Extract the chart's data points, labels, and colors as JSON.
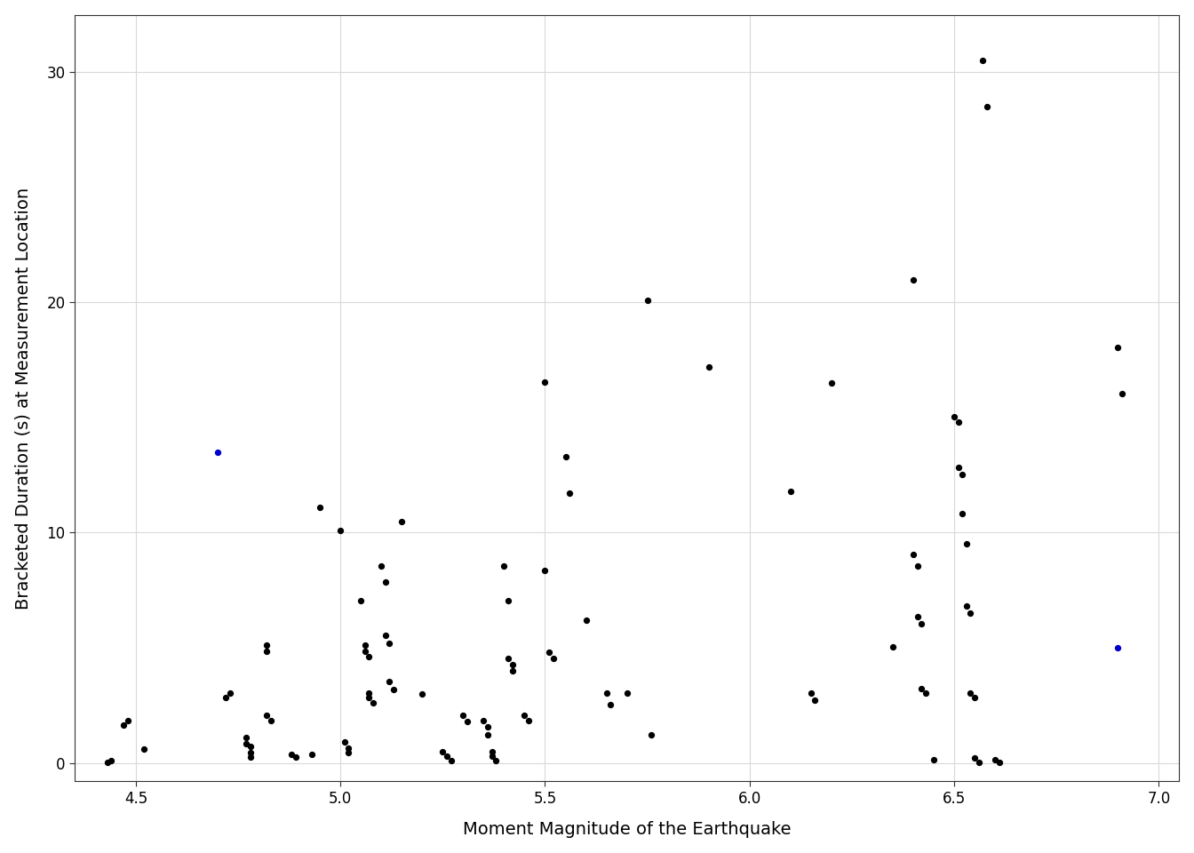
{
  "xlabel": "Moment Magnitude of the Earthquake",
  "ylabel": "Bracketed Duration (s) at Measurement Location",
  "xlim": [
    4.35,
    7.05
  ],
  "ylim": [
    -0.8,
    32.5
  ],
  "xticks": [
    4.5,
    5.0,
    5.5,
    6.0,
    6.5,
    7.0
  ],
  "yticks": [
    0,
    10,
    20,
    30
  ],
  "background_color": "#ffffff",
  "panel_background": "#ffffff",
  "grid_color": "#d9d9d9",
  "point_color_black": "#000000",
  "point_color_blue": "#0000cc",
  "point_size": 18,
  "xlabel_fontsize": 14,
  "ylabel_fontsize": 14,
  "tick_fontsize": 12,
  "black_points": [
    [
      4.43,
      0.03
    ],
    [
      4.44,
      0.1
    ],
    [
      4.47,
      1.65
    ],
    [
      4.48,
      1.82
    ],
    [
      4.52,
      0.6
    ],
    [
      4.72,
      2.85
    ],
    [
      4.73,
      3.05
    ],
    [
      4.77,
      1.1
    ],
    [
      4.77,
      0.85
    ],
    [
      4.78,
      0.7
    ],
    [
      4.78,
      0.45
    ],
    [
      4.78,
      0.25
    ],
    [
      4.82,
      5.1
    ],
    [
      4.82,
      4.85
    ],
    [
      4.82,
      2.05
    ],
    [
      4.83,
      1.85
    ],
    [
      4.88,
      0.38
    ],
    [
      4.89,
      0.27
    ],
    [
      4.93,
      0.38
    ],
    [
      4.95,
      11.1
    ],
    [
      5.0,
      10.1
    ],
    [
      5.01,
      0.9
    ],
    [
      5.02,
      0.65
    ],
    [
      5.02,
      0.45
    ],
    [
      5.05,
      7.05
    ],
    [
      5.06,
      5.1
    ],
    [
      5.06,
      4.85
    ],
    [
      5.07,
      4.6
    ],
    [
      5.07,
      3.05
    ],
    [
      5.07,
      2.82
    ],
    [
      5.08,
      2.6
    ],
    [
      5.1,
      8.55
    ],
    [
      5.11,
      7.85
    ],
    [
      5.11,
      5.55
    ],
    [
      5.12,
      5.2
    ],
    [
      5.12,
      3.55
    ],
    [
      5.13,
      3.2
    ],
    [
      5.15,
      10.5
    ],
    [
      5.2,
      3.0
    ],
    [
      5.25,
      0.5
    ],
    [
      5.26,
      0.3
    ],
    [
      5.27,
      0.08
    ],
    [
      5.3,
      2.05
    ],
    [
      5.31,
      1.8
    ],
    [
      5.35,
      1.85
    ],
    [
      5.36,
      1.55
    ],
    [
      5.36,
      1.2
    ],
    [
      5.37,
      0.5
    ],
    [
      5.37,
      0.28
    ],
    [
      5.38,
      0.08
    ],
    [
      5.4,
      8.55
    ],
    [
      5.41,
      7.05
    ],
    [
      5.41,
      4.55
    ],
    [
      5.42,
      4.25
    ],
    [
      5.42,
      4.0
    ],
    [
      5.45,
      2.05
    ],
    [
      5.46,
      1.82
    ],
    [
      5.5,
      16.55
    ],
    [
      5.5,
      8.35
    ],
    [
      5.51,
      4.82
    ],
    [
      5.52,
      4.52
    ],
    [
      5.55,
      13.3
    ],
    [
      5.56,
      11.7
    ],
    [
      5.6,
      6.2
    ],
    [
      5.65,
      3.05
    ],
    [
      5.66,
      2.52
    ],
    [
      5.7,
      3.02
    ],
    [
      5.75,
      20.1
    ],
    [
      5.76,
      1.22
    ],
    [
      5.9,
      17.2
    ],
    [
      6.1,
      11.8
    ],
    [
      6.15,
      3.05
    ],
    [
      6.16,
      2.72
    ],
    [
      6.2,
      16.5
    ],
    [
      6.35,
      5.05
    ],
    [
      6.4,
      21.0
    ],
    [
      6.4,
      9.05
    ],
    [
      6.41,
      8.55
    ],
    [
      6.41,
      6.35
    ],
    [
      6.42,
      6.05
    ],
    [
      6.42,
      3.22
    ],
    [
      6.43,
      3.02
    ],
    [
      6.45,
      0.12
    ],
    [
      6.5,
      15.05
    ],
    [
      6.51,
      14.82
    ],
    [
      6.51,
      12.82
    ],
    [
      6.52,
      12.52
    ],
    [
      6.52,
      10.82
    ],
    [
      6.53,
      9.52
    ],
    [
      6.53,
      6.82
    ],
    [
      6.54,
      6.52
    ],
    [
      6.54,
      3.05
    ],
    [
      6.55,
      2.82
    ],
    [
      6.55,
      0.22
    ],
    [
      6.56,
      0.02
    ],
    [
      6.57,
      30.52
    ],
    [
      6.58,
      28.52
    ],
    [
      6.6,
      0.12
    ],
    [
      6.61,
      0.02
    ],
    [
      6.9,
      18.05
    ],
    [
      6.91,
      16.05
    ]
  ],
  "blue_points": [
    [
      4.7,
      13.5
    ],
    [
      6.9,
      5.0
    ]
  ]
}
